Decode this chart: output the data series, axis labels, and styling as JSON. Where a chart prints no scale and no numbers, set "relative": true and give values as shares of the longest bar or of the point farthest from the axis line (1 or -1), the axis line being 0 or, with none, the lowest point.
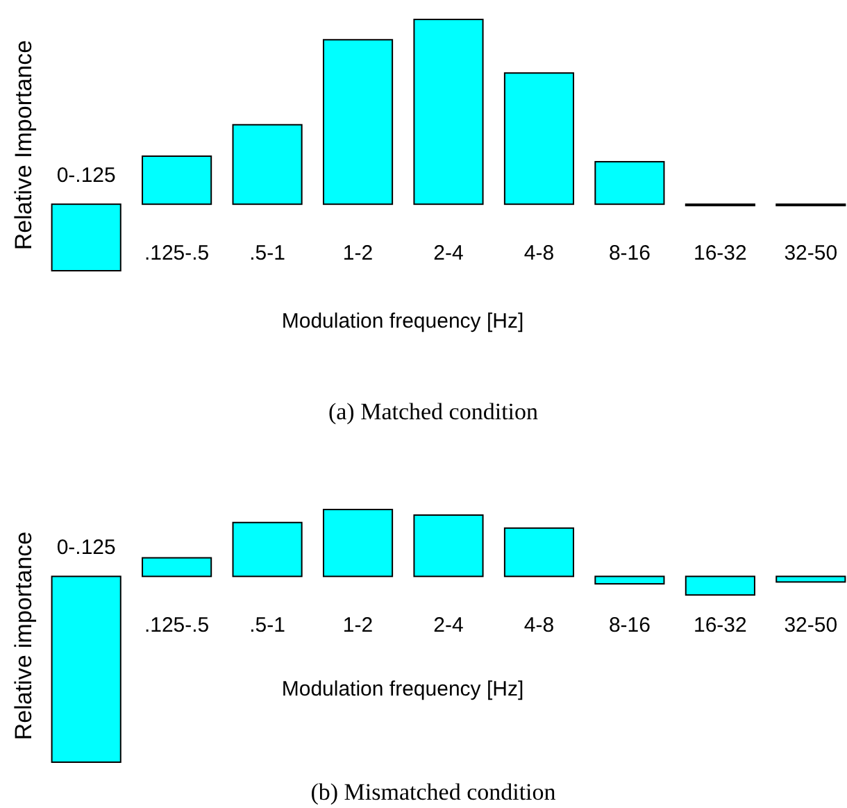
{
  "chart_data": [
    {
      "type": "bar",
      "relative": true,
      "title": "(a) Matched condition",
      "xlabel": "Modulation frequency [Hz]",
      "ylabel": "Relative Importance",
      "categories": [
        "0-.125",
        ".125-.5",
        ".5-1",
        "1-2",
        "2-4",
        "4-8",
        "8-16",
        "16-32",
        "32-50"
      ],
      "values": [
        -0.36,
        0.26,
        0.43,
        0.89,
        1,
        0.71,
        0.23,
        0,
        0
      ],
      "color": "#00ffff"
    },
    {
      "type": "bar",
      "relative": true,
      "title": "(b) Mismatched condition",
      "xlabel": "Modulation frequency [Hz]",
      "ylabel": "Relative importance",
      "categories": [
        "0-.125",
        ".125-.5",
        ".5-1",
        "1-2",
        "2-4",
        "4-8",
        "8-16",
        "16-32",
        "32-50"
      ],
      "values": [
        -1,
        0.1,
        0.29,
        0.36,
        0.33,
        0.26,
        -0.04,
        -0.1,
        -0.03
      ],
      "color": "#00ffff"
    }
  ]
}
